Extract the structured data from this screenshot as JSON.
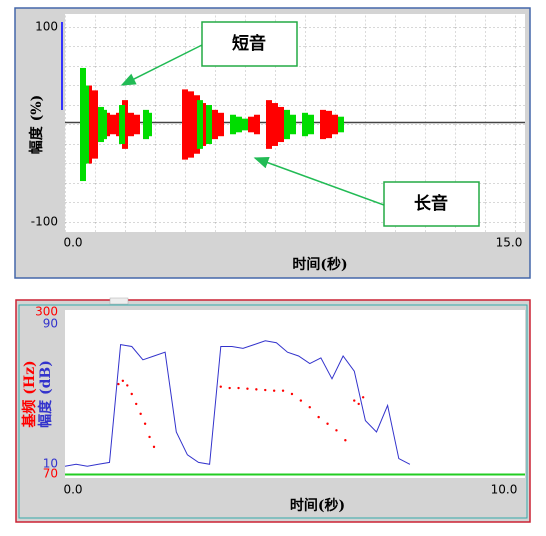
{
  "chart_data": [
    {
      "type": "waveform",
      "ylabel": "幅度 (%)",
      "xlabel": "时间(秒)",
      "grid": true,
      "xlim": [
        0,
        15
      ],
      "xticks": [
        {
          "value": 0,
          "label": "0.0"
        },
        {
          "value": 15,
          "label": "15.0"
        }
      ],
      "ylim": [
        -100,
        100
      ],
      "yticks": [
        100,
        -100
      ],
      "annotations": [
        "短音",
        "长音"
      ],
      "series": [
        {
          "color": "#ff0000",
          "x": [
            0.8,
            1.0,
            1.4,
            1.6,
            1.8,
            2.0,
            2.2,
            2.4,
            4.0,
            4.2,
            4.4,
            4.6,
            5.0,
            5.2,
            6.2,
            6.4,
            6.8,
            7.0,
            7.2,
            8.6,
            8.8,
            9.0
          ],
          "values": [
            40,
            35,
            12,
            10,
            12,
            25,
            12,
            10,
            36,
            34,
            30,
            22,
            15,
            12,
            8,
            10,
            25,
            22,
            18,
            15,
            14,
            10
          ]
        },
        {
          "color": "#00dd00",
          "x": [
            0.6,
            0.7,
            1.2,
            1.3,
            1.9,
            2.7,
            2.8,
            4.5,
            4.8,
            5.6,
            5.8,
            6.0,
            7.4,
            7.6,
            8.0,
            8.2,
            9.2
          ],
          "values": [
            58,
            40,
            18,
            15,
            20,
            15,
            12,
            25,
            20,
            10,
            8,
            6,
            15,
            10,
            12,
            10,
            8
          ]
        }
      ]
    },
    {
      "type": "line",
      "ylabel": "基频 (Hz)",
      "y2label": "幅度 (dB)",
      "xlabel": "时间(秒)",
      "xlim": [
        0,
        10
      ],
      "xticks": [
        {
          "value": 0,
          "label": "0.0"
        },
        {
          "value": 10,
          "label": "10.0"
        }
      ],
      "ylim": [
        70,
        300
      ],
      "yticks": [
        300,
        70
      ],
      "ycolor": "#ff0000",
      "y2lim": [
        10,
        90
      ],
      "y2ticks": [
        90,
        10
      ],
      "y2color": "#3333cc",
      "series": [
        {
          "color": "#ff0000",
          "style": "dots",
          "x": [
            1.2,
            1.3,
            1.4,
            1.5,
            1.6,
            1.7,
            1.8,
            1.9,
            2.0,
            3.5,
            3.7,
            3.9,
            4.1,
            4.3,
            4.5,
            4.7,
            4.9,
            5.1,
            5.3,
            5.5,
            5.7,
            5.9,
            6.1,
            6.3,
            6.5,
            6.6,
            6.7
          ],
          "values": [
            200,
            205,
            198,
            185,
            170,
            155,
            140,
            120,
            105,
            196,
            194,
            194,
            193,
            192,
            191,
            190,
            190,
            185,
            175,
            165,
            150,
            140,
            130,
            115,
            175,
            170,
            180
          ]
        },
        {
          "color": "#3333cc",
          "axis": "y2",
          "x": [
            0,
            0.25,
            0.5,
            0.75,
            1.0,
            1.25,
            1.5,
            1.75,
            2.0,
            2.25,
            2.5,
            2.75,
            3.0,
            3.25,
            3.5,
            3.75,
            4.0,
            4.25,
            4.5,
            4.75,
            5.0,
            5.25,
            5.5,
            5.75,
            6.0,
            6.25,
            6.5,
            6.75,
            7.0,
            7.25,
            7.5,
            7.75
          ],
          "values": [
            12,
            13,
            12,
            13,
            14,
            76,
            75,
            68,
            70,
            72,
            30,
            18,
            14,
            13,
            75,
            75,
            74,
            76,
            78,
            77,
            72,
            70,
            66,
            69,
            58,
            70,
            62,
            36,
            30,
            44,
            16,
            13
          ]
        }
      ]
    }
  ]
}
